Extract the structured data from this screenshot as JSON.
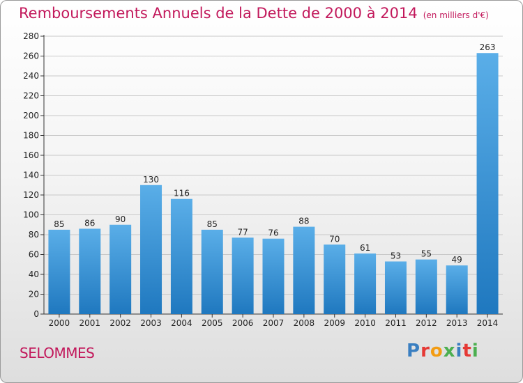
{
  "title": "Remboursements Annuels de la Dette de 2000 à 2014",
  "title_unit": "(en milliers d'€)",
  "commune": "SELOMMES",
  "logo": {
    "text": "Proxiti",
    "letter_colors": [
      "#3a7fc1",
      "#e53935",
      "#f39c12",
      "#4caf50",
      "#3a7fc1",
      "#e53935",
      "#4caf50"
    ]
  },
  "chart_data": {
    "type": "bar",
    "categories": [
      "2000",
      "2001",
      "2002",
      "2003",
      "2004",
      "2005",
      "2006",
      "2007",
      "2008",
      "2009",
      "2010",
      "2011",
      "2012",
      "2013",
      "2014"
    ],
    "values": [
      85,
      86,
      90,
      130,
      116,
      85,
      77,
      76,
      88,
      70,
      61,
      53,
      55,
      49,
      263
    ],
    "ylim": [
      0,
      280
    ],
    "yticks": [
      0,
      20,
      40,
      60,
      80,
      100,
      120,
      140,
      160,
      180,
      200,
      220,
      240,
      260,
      280
    ],
    "grid": true,
    "bar_color_light": "#5aaee8",
    "bar_color_dark": "#1f78bf"
  }
}
